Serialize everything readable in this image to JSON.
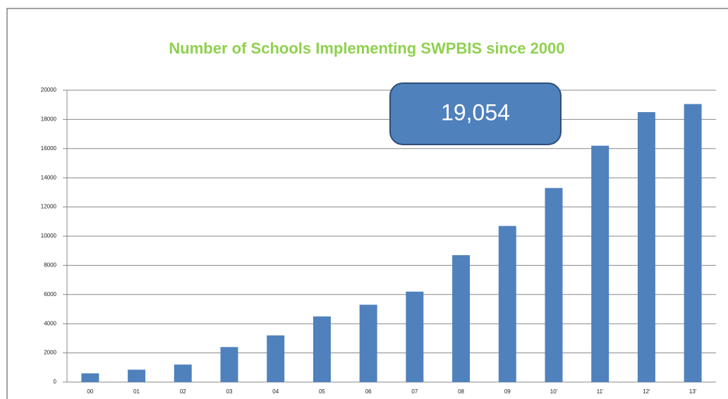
{
  "chart_data": {
    "type": "bar",
    "title": "Number of Schools Implementing SWPBIS since 2000",
    "categories": [
      "00",
      "01",
      "02",
      "03",
      "04",
      "05",
      "06",
      "07",
      "08",
      "09",
      "10'",
      "11'",
      "12'",
      "13'"
    ],
    "values": [
      600,
      850,
      1200,
      2400,
      3200,
      4500,
      5300,
      6200,
      8700,
      10700,
      13300,
      16200,
      18500,
      19054
    ],
    "color": "#4f81bd",
    "annotation": "19,054",
    "ylim": [
      0,
      20000
    ],
    "yticks": [
      0,
      2000,
      4000,
      6000,
      8000,
      10000,
      12000,
      14000,
      16000,
      18000,
      20000
    ],
    "grid": true
  }
}
